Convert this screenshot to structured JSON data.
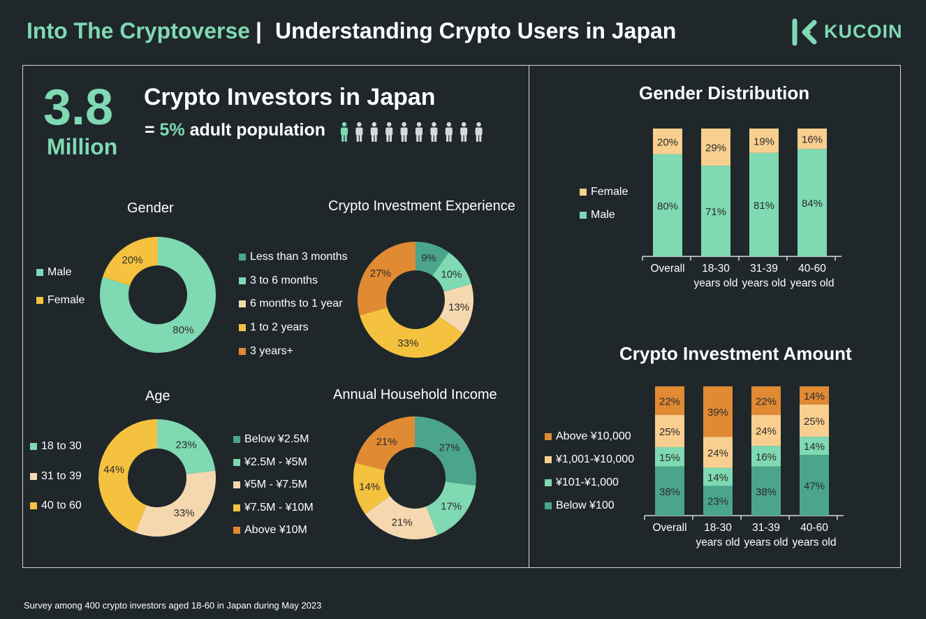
{
  "header": {
    "title_series": "Into The Cryptoverse",
    "separator": "|",
    "title_topic": "Understanding Crypto Users in Japan",
    "logo_text": "KUCOIN",
    "logo_icon": "kucoin-logo-icon"
  },
  "hero": {
    "number": "3.8",
    "unit": "Million",
    "headline": "Crypto Investors in Japan",
    "equals": "= ",
    "percent": "5%",
    "population_text": " adult population",
    "people_icons_total": 10,
    "people_icons_highlighted": 1
  },
  "colors": {
    "background": "#1f272b",
    "mint": "#7fd9b2",
    "teal": "#4aa58b",
    "cream": "#f6d8b0",
    "light_cream": "#f3e0c0",
    "yellow": "#f4c23e",
    "orange": "#e08a33",
    "peach": "#f9cf8f",
    "gray_person": "#d9d9d9"
  },
  "footnote": "Survey among 400 crypto investors aged 18-60 in Japan during May 2023",
  "chart_data": [
    {
      "id": "gender",
      "type": "pie",
      "donut": true,
      "title": "Gender",
      "categories": [
        "Male",
        "Female"
      ],
      "values": [
        80,
        20
      ],
      "labels": [
        "80%",
        "20%"
      ],
      "colors": [
        "#7fd9b2",
        "#f4c23e"
      ],
      "legend_position": "left"
    },
    {
      "id": "experience",
      "type": "pie",
      "donut": true,
      "title": "Crypto Investment Experience",
      "categories": [
        "Less than 3 months",
        "3 to 6 months",
        "6 months to 1 year",
        "1 to 2 years",
        "3 years+"
      ],
      "values": [
        9,
        10,
        13,
        33,
        27
      ],
      "labels": [
        "9%",
        "10%",
        "13%",
        "33%",
        "27%"
      ],
      "colors": [
        "#4aa58b",
        "#7fd9b2",
        "#f6d8b0",
        "#f4c23e",
        "#e08a33"
      ],
      "legend_position": "left"
    },
    {
      "id": "age",
      "type": "pie",
      "donut": true,
      "title": "Age",
      "categories": [
        "18 to 30",
        "31 to 39",
        "40 to 60"
      ],
      "values": [
        23,
        33,
        44
      ],
      "labels": [
        "23%",
        "33%",
        "44%"
      ],
      "colors": [
        "#7fd9b2",
        "#f6d8b0",
        "#f4c23e"
      ],
      "legend_position": "left"
    },
    {
      "id": "income",
      "type": "pie",
      "donut": true,
      "title": "Annual Household Income",
      "categories": [
        "Below ¥2.5M",
        "¥2.5M - ¥5M",
        "¥5M - ¥7.5M",
        "¥7.5M - ¥10M",
        "Above ¥10M"
      ],
      "values": [
        27,
        17,
        21,
        14,
        21
      ],
      "labels": [
        "27%",
        "17%",
        "21%",
        "14%",
        "21%"
      ],
      "colors": [
        "#4aa58b",
        "#7fd9b2",
        "#f6d8b0",
        "#f4c23e",
        "#e08a33"
      ],
      "legend_position": "left"
    },
    {
      "id": "gender_distribution",
      "type": "bar",
      "stacked": true,
      "title": "Gender Distribution",
      "categories": [
        [
          "Overall"
        ],
        [
          "18-30",
          "years old"
        ],
        [
          "31-39",
          "years old"
        ],
        [
          "40-60",
          "years old"
        ]
      ],
      "series": [
        {
          "name": "Male",
          "values": [
            80,
            71,
            81,
            84
          ],
          "labels": [
            "80%",
            "71%",
            "81%",
            "84%"
          ],
          "color": "#7fd9b2"
        },
        {
          "name": "Female",
          "values": [
            20,
            29,
            19,
            16
          ],
          "labels": [
            "20%",
            "29%",
            "19%",
            "16%"
          ],
          "color": "#f9cf8f"
        }
      ],
      "ylim": [
        0,
        100
      ],
      "legend_position": "left",
      "legend_order": [
        "Female",
        "Male"
      ]
    },
    {
      "id": "investment_amount",
      "type": "bar",
      "stacked": true,
      "title": "Crypto Investment Amount",
      "categories": [
        [
          "Overall"
        ],
        [
          "18-30",
          "years old"
        ],
        [
          "31-39",
          "years old"
        ],
        [
          "40-60",
          "years old"
        ]
      ],
      "series": [
        {
          "name": "Below ¥100",
          "values": [
            38,
            23,
            38,
            47
          ],
          "labels": [
            "38%",
            "23%",
            "38%",
            "47%"
          ],
          "color": "#4aa58b"
        },
        {
          "name": "¥101-¥1,000",
          "values": [
            15,
            14,
            16,
            14
          ],
          "labels": [
            "15%",
            "14%",
            "16%",
            "14%"
          ],
          "color": "#7fd9b2"
        },
        {
          "name": "¥1,001-¥10,000",
          "values": [
            25,
            24,
            24,
            25
          ],
          "labels": [
            "25%",
            "24%",
            "24%",
            "25%"
          ],
          "color": "#f9cf8f"
        },
        {
          "name": "Above ¥10,000",
          "values": [
            22,
            39,
            22,
            14
          ],
          "labels": [
            "22%",
            "39%",
            "22%",
            "14%"
          ],
          "color": "#e08a33"
        }
      ],
      "ylim": [
        0,
        100
      ],
      "legend_position": "left",
      "legend_order": [
        "Above ¥10,000",
        "¥1,001-¥10,000",
        "¥101-¥1,000",
        "Below ¥100"
      ]
    }
  ]
}
